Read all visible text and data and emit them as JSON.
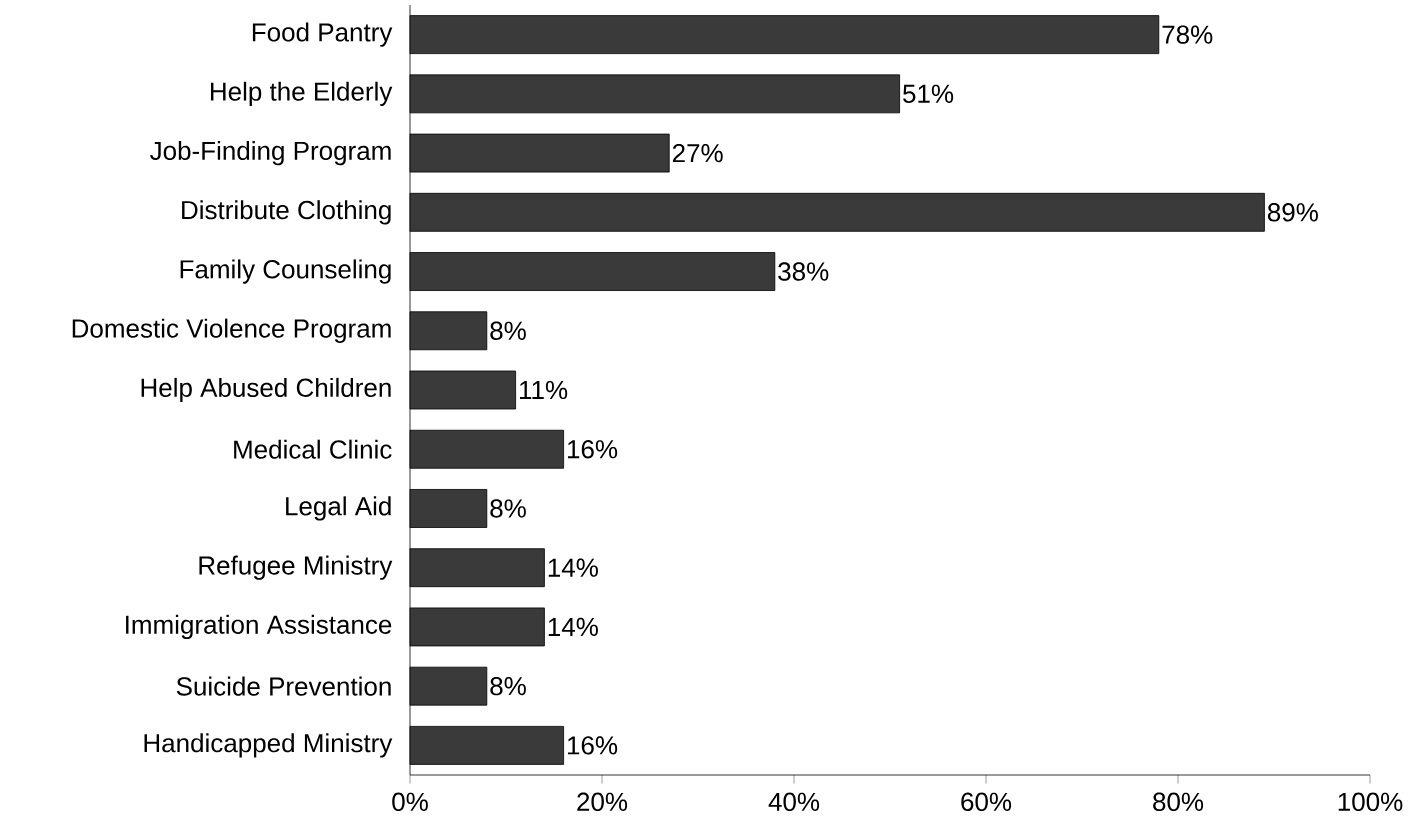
{
  "chart_data": {
    "type": "bar",
    "orientation": "horizontal",
    "color": "#3a3a3a",
    "categories": [
      "Food Pantry",
      "Help the Elderly",
      "Job-Finding Program",
      "Distribute Clothing",
      "Family Counseling",
      "Domestic Violence Program",
      "Help Abused Children",
      "Medical Clinic",
      "Legal Aid",
      "Refugee Ministry",
      "Immigration Assistance",
      "Suicide Prevention",
      "Handicapped Ministry"
    ],
    "values": [
      78,
      51,
      27,
      89,
      38,
      8,
      11,
      16,
      8,
      14,
      14,
      8,
      16
    ],
    "value_labels": [
      "78%",
      "51%",
      "27%",
      "89%",
      "38%",
      "8%",
      "11%",
      "16%",
      "8%",
      "14%",
      "14%",
      "8%",
      "16%"
    ],
    "xlim": [
      0,
      100
    ],
    "xticks": [
      {
        "value": 0,
        "label": "0%"
      },
      {
        "value": 20,
        "label": "20%"
      },
      {
        "value": 40,
        "label": "40%"
      },
      {
        "value": 60,
        "label": "60%"
      },
      {
        "value": 80,
        "label": "80%"
      },
      {
        "value": 100,
        "label": "100%"
      }
    ]
  }
}
